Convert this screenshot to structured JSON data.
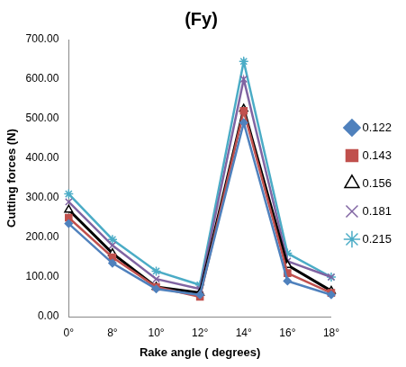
{
  "chart_data": {
    "type": "line",
    "title": "(Fy)",
    "x_label": "Rake angle ( degrees)",
    "y_label": "Cutting forces (N)",
    "categories": [
      "0°",
      "8°",
      "10°",
      "12°",
      "14°",
      "16°",
      "18°"
    ],
    "series": [
      {
        "name": "0.122",
        "color": "#4F81BD",
        "marker": "diamond",
        "line_style": "solid",
        "values": [
          235,
          135,
          70,
          55,
          490,
          90,
          55
        ]
      },
      {
        "name": "0.143",
        "color": "#C0504D",
        "marker": "square",
        "line_style": "solid",
        "values": [
          250,
          150,
          75,
          50,
          520,
          110,
          60
        ]
      },
      {
        "name": "0.156",
        "color": "#000000",
        "marker": "triangle",
        "line_style": "solid",
        "values": [
          270,
          160,
          75,
          60,
          525,
          130,
          65
        ]
      },
      {
        "name": "0.181",
        "color": "#8064A2",
        "marker": "x",
        "line_style": "solid",
        "values": [
          290,
          180,
          95,
          70,
          600,
          140,
          100
        ]
      },
      {
        "name": "0.215",
        "color": "#4BACC6",
        "marker": "star",
        "line_style": "solid",
        "values": [
          310,
          195,
          115,
          80,
          645,
          160,
          100
        ]
      }
    ],
    "ylim": [
      0,
      700
    ],
    "yticks": [
      {
        "value": 0,
        "label": "0.00"
      },
      {
        "value": 100,
        "label": "100.00"
      },
      {
        "value": 200,
        "label": "200.00"
      },
      {
        "value": 300,
        "label": "300.00"
      },
      {
        "value": 400,
        "label": "400.00"
      },
      {
        "value": 500,
        "label": "500.00"
      },
      {
        "value": 600,
        "label": "600.00"
      },
      {
        "value": 700,
        "label": "700.00"
      }
    ],
    "grid": false,
    "legend": "right"
  }
}
